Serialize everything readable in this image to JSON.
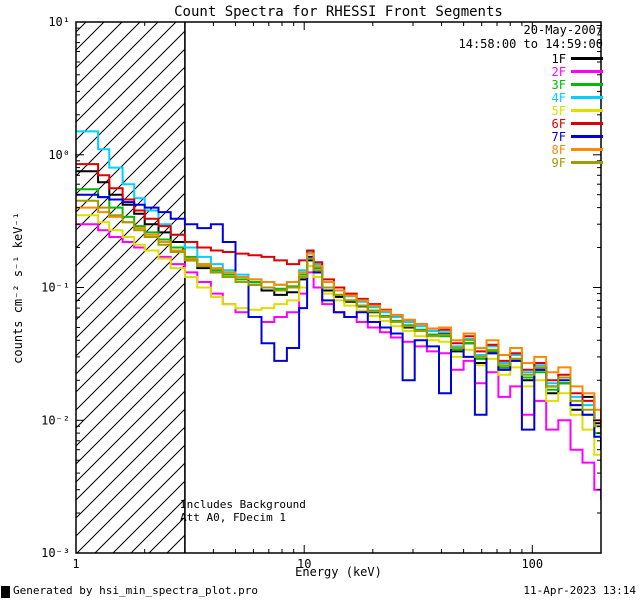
{
  "title": "Count Spectra for RHESSI Front Segments",
  "header": {
    "date": "20-May-2007",
    "time_range": "14:58:00 to 14:59:00"
  },
  "annotations": {
    "line1": "Includes Background",
    "line2": "Att A0, FDecim 1"
  },
  "footer": {
    "left": "Generated by hsi_min_spectra_plot.pro",
    "right": "11-Apr-2023 13:14"
  },
  "chart_data": {
    "type": "line",
    "title": "Count Spectra for RHESSI Front Segments",
    "xlabel": "Energy (keV)",
    "ylabel": "counts cm⁻² s⁻¹ keV⁻¹",
    "xscale": "log",
    "yscale": "log",
    "xlim": [
      1,
      200
    ],
    "ylim": [
      0.001,
      10
    ],
    "grid": false,
    "legend_position": "top-right",
    "line_style": "steps",
    "hatched_region_kev": [
      1,
      3
    ],
    "x_ticks": [
      {
        "value": 1,
        "label": "1"
      },
      {
        "value": 10,
        "label": "10"
      },
      {
        "value": 100,
        "label": "100"
      }
    ],
    "y_ticks": [
      {
        "value": 10,
        "label": "10¹"
      },
      {
        "value": 1,
        "label": "10⁰"
      },
      {
        "value": 0.1,
        "label": "10⁻¹"
      },
      {
        "value": 0.01,
        "label": "10⁻²"
      },
      {
        "value": 0.001,
        "label": "10⁻³"
      }
    ],
    "x": [
      1.0,
      1.25,
      1.4,
      1.6,
      1.8,
      2.0,
      2.3,
      2.6,
      3.0,
      3.4,
      3.9,
      4.4,
      5.0,
      5.7,
      6.5,
      7.4,
      8.4,
      9.5,
      10.3,
      11.0,
      12.0,
      13.5,
      15.0,
      17.0,
      19.0,
      21.5,
      24.0,
      27.0,
      30.5,
      34.5,
      39.0,
      44.0,
      50.0,
      56.0,
      63.0,
      71.0,
      80.0,
      90.0,
      102.0,
      115.0,
      130.0,
      147.0,
      166.0,
      187.0,
      200.0
    ],
    "series": [
      {
        "name": "1F",
        "color": "#000000",
        "values": [
          0.75,
          0.62,
          0.5,
          0.42,
          0.36,
          0.3,
          0.26,
          0.22,
          0.16,
          0.14,
          0.13,
          0.12,
          0.11,
          0.105,
          0.095,
          0.088,
          0.092,
          0.115,
          0.16,
          0.13,
          0.095,
          0.085,
          0.078,
          0.072,
          0.065,
          0.06,
          0.055,
          0.05,
          0.047,
          0.044,
          0.045,
          0.033,
          0.038,
          0.027,
          0.032,
          0.024,
          0.029,
          0.02,
          0.024,
          0.016,
          0.019,
          0.012,
          0.015,
          0.0095,
          0.012
        ]
      },
      {
        "name": "2F",
        "color": "#ff00ff",
        "values": [
          0.3,
          0.27,
          0.24,
          0.22,
          0.2,
          0.19,
          0.17,
          0.15,
          0.13,
          0.11,
          0.09,
          0.075,
          0.065,
          0.06,
          0.055,
          0.06,
          0.065,
          0.09,
          0.13,
          0.1,
          0.075,
          0.065,
          0.06,
          0.055,
          0.05,
          0.046,
          0.042,
          0.039,
          0.036,
          0.033,
          0.032,
          0.024,
          0.028,
          0.019,
          0.023,
          0.015,
          0.018,
          0.011,
          0.014,
          0.0085,
          0.01,
          0.006,
          0.0048,
          0.003,
          0.0025
        ]
      },
      {
        "name": "3F",
        "color": "#00bb00",
        "values": [
          0.55,
          0.48,
          0.4,
          0.34,
          0.29,
          0.26,
          0.23,
          0.2,
          0.17,
          0.15,
          0.135,
          0.125,
          0.115,
          0.11,
          0.1,
          0.098,
          0.102,
          0.125,
          0.17,
          0.14,
          0.1,
          0.088,
          0.08,
          0.073,
          0.067,
          0.061,
          0.056,
          0.052,
          0.048,
          0.044,
          0.043,
          0.034,
          0.038,
          0.029,
          0.033,
          0.025,
          0.028,
          0.021,
          0.023,
          0.017,
          0.019,
          0.013,
          0.011,
          0.008,
          0.006
        ]
      },
      {
        "name": "4F",
        "color": "#00cfff",
        "values": [
          1.5,
          1.1,
          0.8,
          0.6,
          0.47,
          0.38,
          0.3,
          0.25,
          0.2,
          0.17,
          0.15,
          0.135,
          0.125,
          0.115,
          0.11,
          0.105,
          0.11,
          0.135,
          0.185,
          0.15,
          0.11,
          0.095,
          0.086,
          0.078,
          0.071,
          0.065,
          0.06,
          0.055,
          0.051,
          0.047,
          0.046,
          0.036,
          0.041,
          0.031,
          0.036,
          0.027,
          0.031,
          0.023,
          0.026,
          0.019,
          0.021,
          0.015,
          0.013,
          0.009,
          0.007
        ]
      },
      {
        "name": "5F",
        "color": "#dede00",
        "values": [
          0.35,
          0.31,
          0.27,
          0.24,
          0.21,
          0.19,
          0.165,
          0.14,
          0.12,
          0.1,
          0.085,
          0.075,
          0.07,
          0.068,
          0.07,
          0.075,
          0.08,
          0.1,
          0.145,
          0.12,
          0.09,
          0.08,
          0.073,
          0.067,
          0.061,
          0.056,
          0.051,
          0.047,
          0.043,
          0.04,
          0.039,
          0.03,
          0.034,
          0.026,
          0.029,
          0.022,
          0.025,
          0.018,
          0.02,
          0.014,
          0.016,
          0.011,
          0.0085,
          0.0055,
          0.0042
        ]
      },
      {
        "name": "6F",
        "color": "#dd0000",
        "values": [
          0.85,
          0.7,
          0.56,
          0.46,
          0.38,
          0.33,
          0.29,
          0.25,
          0.22,
          0.2,
          0.19,
          0.185,
          0.18,
          0.175,
          0.17,
          0.16,
          0.15,
          0.16,
          0.19,
          0.155,
          0.115,
          0.1,
          0.09,
          0.082,
          0.075,
          0.068,
          0.062,
          0.057,
          0.053,
          0.049,
          0.048,
          0.038,
          0.043,
          0.033,
          0.037,
          0.028,
          0.032,
          0.024,
          0.027,
          0.02,
          0.022,
          0.016,
          0.014,
          0.01,
          0.008
        ]
      },
      {
        "name": "7F",
        "color": "#0000dd",
        "values": [
          0.5,
          0.48,
          0.46,
          0.44,
          0.42,
          0.4,
          0.37,
          0.33,
          0.3,
          0.28,
          0.3,
          0.22,
          0.12,
          0.06,
          0.038,
          0.028,
          0.035,
          0.07,
          0.17,
          0.13,
          0.08,
          0.065,
          0.06,
          0.065,
          0.055,
          0.05,
          0.045,
          0.02,
          0.04,
          0.036,
          0.016,
          0.035,
          0.03,
          0.011,
          0.032,
          0.024,
          0.028,
          0.0085,
          0.024,
          0.018,
          0.02,
          0.013,
          0.011,
          0.0075,
          0.006
        ]
      },
      {
        "name": "8F",
        "color": "#ff8800",
        "values": [
          0.4,
          0.37,
          0.34,
          0.31,
          0.28,
          0.25,
          0.22,
          0.19,
          0.165,
          0.15,
          0.14,
          0.13,
          0.12,
          0.115,
          0.11,
          0.105,
          0.11,
          0.13,
          0.18,
          0.145,
          0.11,
          0.095,
          0.087,
          0.08,
          0.073,
          0.067,
          0.062,
          0.057,
          0.053,
          0.049,
          0.05,
          0.04,
          0.045,
          0.035,
          0.04,
          0.031,
          0.035,
          0.027,
          0.03,
          0.023,
          0.025,
          0.018,
          0.016,
          0.012,
          0.01
        ]
      },
      {
        "name": "9F",
        "color": "#9d9d00",
        "values": [
          0.45,
          0.4,
          0.35,
          0.31,
          0.27,
          0.24,
          0.21,
          0.185,
          0.16,
          0.145,
          0.13,
          0.12,
          0.11,
          0.105,
          0.1,
          0.095,
          0.1,
          0.12,
          0.165,
          0.135,
          0.1,
          0.088,
          0.08,
          0.073,
          0.066,
          0.06,
          0.055,
          0.051,
          0.047,
          0.043,
          0.044,
          0.035,
          0.04,
          0.03,
          0.034,
          0.026,
          0.029,
          0.022,
          0.025,
          0.018,
          0.021,
          0.014,
          0.012,
          0.009,
          0.0075
        ]
      }
    ]
  }
}
